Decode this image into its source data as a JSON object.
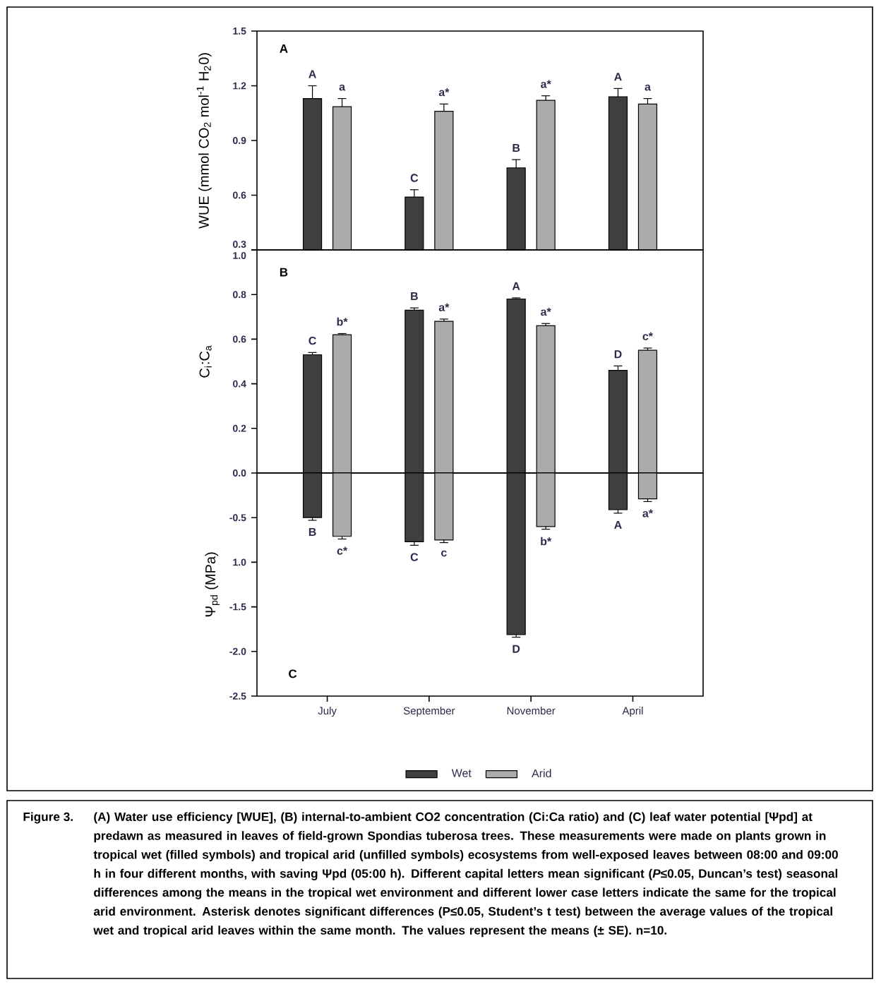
{
  "chart_data": [
    {
      "type": "bar",
      "ylabel": "WUE (mmol CO$_{2}$ mol$^{-1}$ H$_{2}$0)",
      "categories": [
        null,
        null,
        null,
        null
      ],
      "tick_labels": "y",
      "ylim": [
        0.3,
        1.5
      ],
      "yticks": [
        0.3,
        0.6,
        0.9,
        1.2,
        1.5
      ],
      "annotations": [
        "A"
      ],
      "series": [
        {
          "color": "#3f3f3f",
          "values": [
            1.13,
            0.59,
            0.75,
            1.14
          ],
          "errors": [
            0.07,
            0.04,
            0.045,
            0.045
          ],
          "value_labels": [
            "A",
            "C",
            "B",
            "A"
          ]
        },
        {
          "color": "#ababab",
          "values": [
            1.085,
            1.06,
            1.12,
            1.1
          ],
          "errors": [
            0.045,
            0.04,
            0.025,
            0.03
          ],
          "value_labels": [
            "a",
            "a*",
            "a*",
            "a"
          ]
        }
      ]
    },
    {
      "type": "bar",
      "ylabel": "C$_{i}$:C$_{a}$",
      "categories": [
        null,
        null,
        null,
        null
      ],
      "tick_labels": "y",
      "ylim": [
        0,
        1.0
      ],
      "yticks": [
        {
          "value": 0,
          "label": "0.0"
        },
        0.2,
        0.4,
        0.6,
        0.8,
        {
          "value": 1.0,
          "label": "1.0"
        }
      ],
      "annotations": [
        "B"
      ],
      "series": [
        {
          "color": "#3f3f3f",
          "values": [
            0.53,
            0.73,
            0.78,
            0.46
          ],
          "errors": [
            0.01,
            0.01,
            0.005,
            0.02
          ],
          "value_labels": [
            "C",
            "B",
            "A",
            "D"
          ]
        },
        {
          "color": "#ababab",
          "values": [
            0.62,
            0.68,
            0.66,
            0.55
          ],
          "errors": [
            0.005,
            0.01,
            0.01,
            0.01
          ],
          "value_labels": [
            "b*",
            "a*",
            "a*",
            "c*"
          ]
        }
      ]
    },
    {
      "type": "bar",
      "ylabel": "Ψ$_{pd}$ (MPa)",
      "categories": [
        "July",
        "September",
        "November",
        "April"
      ],
      "ylim": [
        -2.5,
        0
      ],
      "yticks": [
        -0.5,
        {
          "value": -1.0,
          "label": "1.0"
        },
        -1.5,
        {
          "value": -2.0,
          "label": "-2.0"
        },
        -2.5
      ],
      "legend": "bottom",
      "annotations": [
        "C",
        "Figure 3.",
        "(A) Water use efficiency [WUE], (B) internal-to-ambient CO2 concentration (Ci:Ca ratio) and (C) leaf water potential [Ψpd] at predawn as measured in leaves of field-grown Spondias tuberosa trees. These measurements were made on plants grown in tropical wet (filled symbols) and tropical arid (unfilled symbols) ecosystems from well-exposed leaves between 08:00 and 09:00 h in four different months, with saving Ψpd (05:00 h). Different capital letters mean significant (*P*≤0.05, Duncan’s test) seasonal differences among the means in the tropical wet environment and different lower case letters indicate the same for the tropical arid environment. Asterisk denotes significant differences (P≤0.05, Student’s t test) between the average values of the tropical wet and tropical arid leaves within the same month. The values represent the means (± SE). n=10."
      ],
      "series": [
        {
          "name": "Wet",
          "color": "#3f3f3f",
          "values": [
            -0.5,
            -0.77,
            -1.81,
            -0.41
          ],
          "errors": [
            0.03,
            0.04,
            0.03,
            0.04
          ],
          "value_labels": [
            "B",
            "C",
            "D",
            "A"
          ]
        },
        {
          "name": "Arid",
          "color": "#ababab",
          "values": [
            -0.71,
            -0.75,
            -0.6,
            -0.29
          ],
          "errors": [
            0.03,
            0.03,
            0.03,
            0.03
          ],
          "value_labels": [
            "c*",
            "c",
            "b*",
            "a*"
          ]
        }
      ]
    }
  ]
}
